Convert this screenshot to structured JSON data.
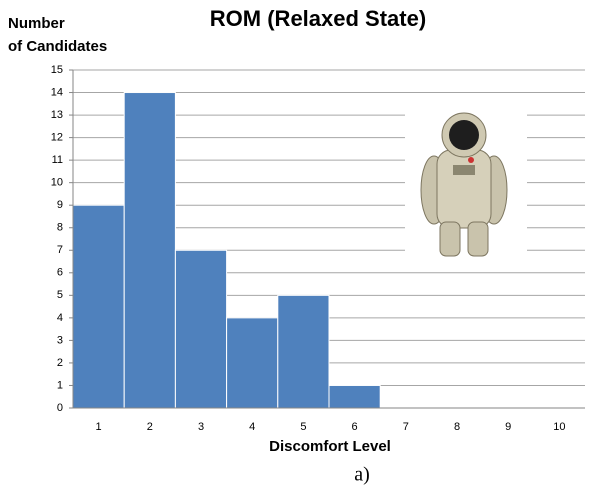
{
  "chart_data": {
    "type": "bar",
    "title": "ROM (Relaxed State)",
    "ylabel_lines": [
      "Number",
      "of Candidates"
    ],
    "xlabel": "Discomfort Level",
    "caption": "a)",
    "categories": [
      "1",
      "2",
      "3",
      "4",
      "5",
      "6",
      "7",
      "8",
      "9",
      "10"
    ],
    "values": [
      9,
      14,
      7,
      4,
      5,
      1,
      0,
      0,
      0,
      0
    ],
    "color": "#4f81bd",
    "ylim": [
      0,
      15
    ],
    "yticks": [
      0,
      1,
      2,
      3,
      4,
      5,
      6,
      7,
      8,
      9,
      10,
      11,
      12,
      13,
      14,
      15
    ],
    "grid": true
  }
}
